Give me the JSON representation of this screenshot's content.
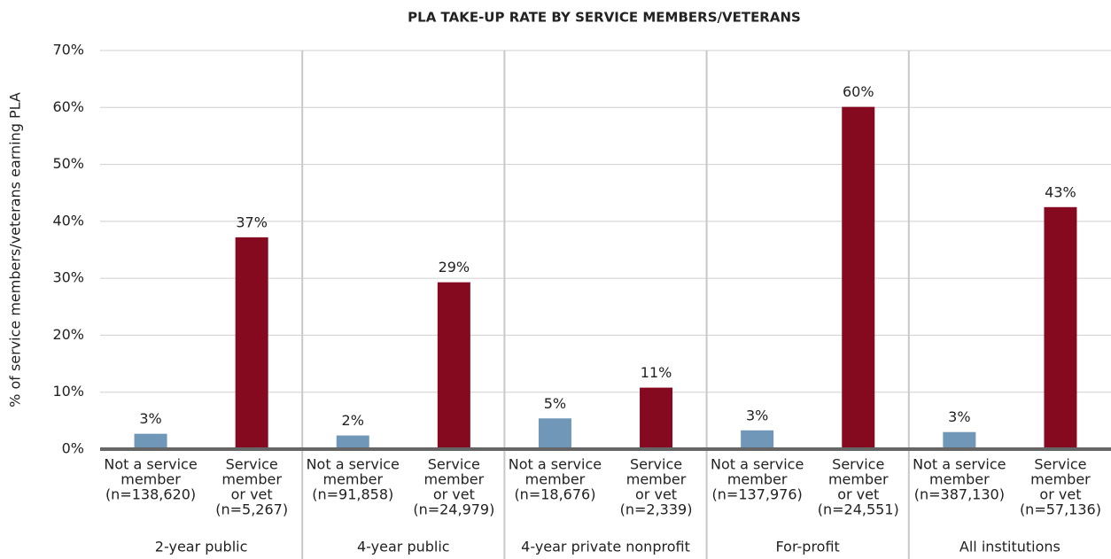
{
  "chart_data": {
    "type": "bar",
    "title": "PLA TAKE-UP RATE BY SERVICE MEMBERS/VETERANS",
    "ylabel": "% of service members/veterans earning PLA",
    "categories": [
      "2-year public",
      "4-year public",
      "4-year private nonprofit",
      "For-profit",
      "All institutions"
    ],
    "series": [
      {
        "color": "#7097b8",
        "values": [
          2.7,
          2.4,
          5.4,
          3.3,
          3.0
        ],
        "value_labels": [
          "3%",
          "2%",
          "5%",
          "3%",
          "3%"
        ],
        "bar_labels": [
          [
            "Not a service",
            "member",
            "(n=138,620)"
          ],
          [
            "Not a service",
            "member",
            "(n=91,858)"
          ],
          [
            "Not a service",
            "member",
            "(n=18,676)"
          ],
          [
            "Not a service",
            "member",
            "(n=137,976)"
          ],
          [
            "Not a service",
            "member",
            "(n=387,130)"
          ]
        ]
      },
      {
        "color": "#860a1f",
        "values": [
          37.2,
          29.3,
          10.8,
          60.1,
          42.5
        ],
        "value_labels": [
          "37%",
          "29%",
          "11%",
          "60%",
          "43%"
        ],
        "bar_labels": [
          [
            "Service",
            "member",
            "or vet",
            "(n=5,267)"
          ],
          [
            "Service",
            "member",
            "or vet",
            "(n=24,979)"
          ],
          [
            "Service",
            "member",
            "or vet",
            "(n=2,339)"
          ],
          [
            "Service",
            "member",
            "or vet",
            "(n=24,551)"
          ],
          [
            "Service",
            "member",
            "or vet",
            "(n=57,136)"
          ]
        ]
      }
    ],
    "ylim": [
      0,
      70
    ],
    "yticks": [
      {
        "value": 0,
        "label": "0%"
      },
      {
        "value": 10,
        "label": "10%"
      },
      {
        "value": 20,
        "label": "20%"
      },
      {
        "value": 30,
        "label": "30%"
      },
      {
        "value": 40,
        "label": "40%"
      },
      {
        "value": 50,
        "label": "50%"
      },
      {
        "value": 60,
        "label": "60%"
      },
      {
        "value": 70,
        "label": "70%"
      }
    ],
    "grid": true
  }
}
